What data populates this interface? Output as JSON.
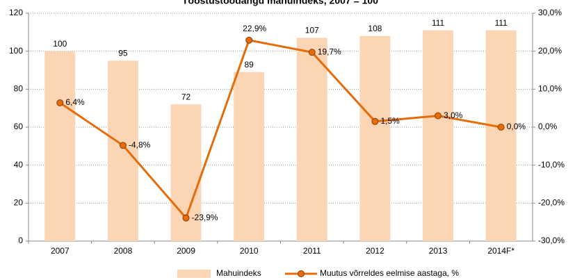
{
  "chart_data": {
    "type": "bar_line",
    "title": "Tööstustoodangu mahuindeks, 2007 = 100",
    "categories": [
      "2007",
      "2008",
      "2009",
      "2010",
      "2011",
      "2012",
      "2013",
      "2014F*"
    ],
    "series": [
      {
        "name": "Mahuindeks",
        "type": "bar",
        "color": "#fcd5b5",
        "values": [
          100,
          95,
          72,
          89,
          107,
          108,
          111,
          111
        ]
      },
      {
        "name": "Muutus võrreldes eelmise aastaga, %",
        "type": "line",
        "axis": "y2",
        "color": "#e46c0a",
        "values": [
          6.4,
          -4.8,
          -23.9,
          22.9,
          19.7,
          1.5,
          3.0,
          0.0
        ],
        "value_labels": [
          "6,4%",
          "-4,8%",
          "-23,9%",
          "22,9%",
          "19,7%",
          "1,5%",
          "3,0%",
          "0,0%"
        ]
      }
    ],
    "ylim": [
      0,
      120
    ],
    "yticks": [
      0,
      20,
      40,
      60,
      80,
      100,
      120
    ],
    "y2lim": [
      -30,
      30
    ],
    "y2ticks": [
      {
        "value": -30,
        "label": "-30,0%"
      },
      {
        "value": -20,
        "label": "-20,0%"
      },
      {
        "value": -10,
        "label": "-10,0%"
      },
      {
        "value": 0,
        "label": "0,0%"
      },
      {
        "value": 10,
        "label": "10,0%"
      },
      {
        "value": 20,
        "label": "20,0%"
      },
      {
        "value": 30,
        "label": "30,0%"
      }
    ],
    "grid": true,
    "legend": "bottom"
  }
}
